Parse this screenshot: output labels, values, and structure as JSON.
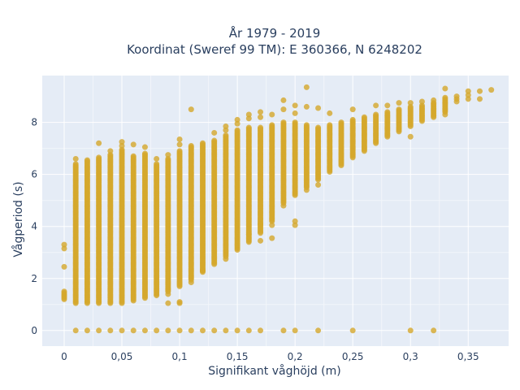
{
  "chart_data": {
    "type": "scatter",
    "title_line1": "År 1979 - 2019",
    "title_line2": "Koordinat (Sweref 99 TM): E 360366, N 6248202",
    "xlabel": "Signifikant våghöjd (m)",
    "ylabel": "Vågperiod (s)",
    "xlim": [
      -0.019,
      0.385
    ],
    "ylim": [
      -0.6,
      9.8
    ],
    "x_ticks": [
      0,
      0.05,
      0.1,
      0.15,
      0.2,
      0.25,
      0.3,
      0.35
    ],
    "x_tick_labels": [
      "0",
      "0,05",
      "0,1",
      "0,15",
      "0,2",
      "0,25",
      "0,3",
      "0,35"
    ],
    "y_ticks": [
      0,
      2,
      4,
      6,
      8
    ],
    "y_tick_labels": [
      "0",
      "2",
      "4",
      "6",
      "8"
    ],
    "grid": true,
    "plot_bgcolor": "#E5ECF6",
    "marker_color": "#D4A72C",
    "columns": [
      {
        "x": 0.01,
        "ymin": 1.05,
        "ymax": 6.4
      },
      {
        "x": 0.02,
        "ymin": 1.05,
        "ymax": 6.55
      },
      {
        "x": 0.03,
        "ymin": 1.05,
        "ymax": 6.65
      },
      {
        "x": 0.04,
        "ymin": 1.05,
        "ymax": 6.75
      },
      {
        "x": 0.05,
        "ymin": 1.05,
        "ymax": 6.95
      },
      {
        "x": 0.06,
        "ymin": 1.15,
        "ymax": 6.7
      },
      {
        "x": 0.07,
        "ymin": 1.25,
        "ymax": 6.8
      },
      {
        "x": 0.08,
        "ymin": 1.35,
        "ymax": 6.4
      },
      {
        "x": 0.09,
        "ymin": 1.5,
        "ymax": 6.6
      },
      {
        "x": 0.1,
        "ymin": 1.7,
        "ymax": 6.9
      },
      {
        "x": 0.11,
        "ymin": 1.95,
        "ymax": 7.1
      },
      {
        "x": 0.12,
        "ymin": 2.25,
        "ymax": 7.2
      },
      {
        "x": 0.13,
        "ymin": 2.55,
        "ymax": 7.3
      },
      {
        "x": 0.14,
        "ymin": 2.85,
        "ymax": 7.5
      },
      {
        "x": 0.15,
        "ymin": 3.15,
        "ymax": 7.7
      },
      {
        "x": 0.16,
        "ymin": 3.45,
        "ymax": 7.8
      },
      {
        "x": 0.17,
        "ymin": 3.75,
        "ymax": 7.8
      },
      {
        "x": 0.18,
        "ymin": 4.2,
        "ymax": 7.9
      },
      {
        "x": 0.19,
        "ymin": 4.9,
        "ymax": 8.0
      },
      {
        "x": 0.2,
        "ymin": 5.2,
        "ymax": 8.0
      },
      {
        "x": 0.21,
        "ymin": 5.5,
        "ymax": 7.9
      },
      {
        "x": 0.22,
        "ymin": 5.8,
        "ymax": 7.8
      },
      {
        "x": 0.23,
        "ymin": 6.1,
        "ymax": 7.9
      },
      {
        "x": 0.24,
        "ymin": 6.35,
        "ymax": 8.0
      },
      {
        "x": 0.25,
        "ymin": 6.65,
        "ymax": 8.1
      },
      {
        "x": 0.26,
        "ymin": 6.9,
        "ymax": 8.2
      },
      {
        "x": 0.27,
        "ymin": 7.2,
        "ymax": 8.3
      },
      {
        "x": 0.28,
        "ymin": 7.45,
        "ymax": 8.4
      },
      {
        "x": 0.29,
        "ymin": 7.65,
        "ymax": 8.5
      },
      {
        "x": 0.3,
        "ymin": 7.85,
        "ymax": 8.6
      },
      {
        "x": 0.31,
        "ymin": 8.05,
        "ymax": 8.65
      },
      {
        "x": 0.32,
        "ymin": 8.2,
        "ymax": 8.75
      },
      {
        "x": 0.33,
        "ymin": 8.4,
        "ymax": 8.95
      }
    ],
    "points": [
      [
        0,
        1.2
      ],
      [
        0,
        1.25
      ],
      [
        0,
        1.3
      ],
      [
        0,
        1.35
      ],
      [
        0,
        1.4
      ],
      [
        0,
        1.45
      ],
      [
        0,
        1.5
      ],
      [
        0,
        2.45
      ],
      [
        0,
        3.15
      ],
      [
        0,
        3.3
      ],
      [
        0.01,
        6.6
      ],
      [
        0.03,
        7.2
      ],
      [
        0.04,
        6.9
      ],
      [
        0.05,
        7.1
      ],
      [
        0.05,
        7.25
      ],
      [
        0.06,
        7.15
      ],
      [
        0.07,
        7.05
      ],
      [
        0.08,
        6.6
      ],
      [
        0.09,
        6.75
      ],
      [
        0.1,
        7.15
      ],
      [
        0.1,
        7.35
      ],
      [
        0.11,
        8.5
      ],
      [
        0.13,
        7.6
      ],
      [
        0.14,
        7.7
      ],
      [
        0.14,
        7.85
      ],
      [
        0.15,
        7.95
      ],
      [
        0.15,
        8.1
      ],
      [
        0.16,
        8.15
      ],
      [
        0.16,
        8.3
      ],
      [
        0.17,
        8.2
      ],
      [
        0.17,
        8.4
      ],
      [
        0.18,
        8.3
      ],
      [
        0.19,
        8.5
      ],
      [
        0.19,
        8.85
      ],
      [
        0.2,
        8.35
      ],
      [
        0.2,
        8.65
      ],
      [
        0.21,
        9.35
      ],
      [
        0.21,
        8.6
      ],
      [
        0.22,
        8.55
      ],
      [
        0.23,
        8.35
      ],
      [
        0.25,
        8.5
      ],
      [
        0.27,
        8.65
      ],
      [
        0.28,
        8.65
      ],
      [
        0.29,
        8.75
      ],
      [
        0.3,
        8.75
      ],
      [
        0.3,
        7.45
      ],
      [
        0.31,
        8.8
      ],
      [
        0.32,
        8.85
      ],
      [
        0.33,
        9.3
      ],
      [
        0.33,
        8.3
      ],
      [
        0.34,
        8.8
      ],
      [
        0.34,
        8.9
      ],
      [
        0.34,
        9.0
      ],
      [
        0.35,
        8.9
      ],
      [
        0.35,
        9.05
      ],
      [
        0.35,
        9.2
      ],
      [
        0.36,
        8.9
      ],
      [
        0.36,
        9.2
      ],
      [
        0.37,
        9.25
      ],
      [
        0.09,
        1.05
      ],
      [
        0.1,
        1.05
      ],
      [
        0.1,
        1.1
      ],
      [
        0.09,
        1.4
      ],
      [
        0.11,
        1.85
      ],
      [
        0.12,
        2.3
      ],
      [
        0.14,
        2.75
      ],
      [
        0.15,
        3.1
      ],
      [
        0.16,
        3.4
      ],
      [
        0.16,
        3.7
      ],
      [
        0.17,
        3.45
      ],
      [
        0.17,
        4.1
      ],
      [
        0.18,
        4.05
      ],
      [
        0.18,
        3.55
      ],
      [
        0.19,
        4.8
      ],
      [
        0.2,
        4.05
      ],
      [
        0.2,
        4.2
      ],
      [
        0.21,
        5.4
      ],
      [
        0.22,
        5.6
      ],
      [
        0.01,
        0
      ],
      [
        0.02,
        0
      ],
      [
        0.03,
        0
      ],
      [
        0.04,
        0
      ],
      [
        0.05,
        0
      ],
      [
        0.06,
        0
      ],
      [
        0.07,
        0
      ],
      [
        0.08,
        0
      ],
      [
        0.09,
        0
      ],
      [
        0.1,
        0
      ],
      [
        0.11,
        0
      ],
      [
        0.12,
        0
      ],
      [
        0.13,
        0
      ],
      [
        0.14,
        0
      ],
      [
        0.15,
        0
      ],
      [
        0.16,
        0
      ],
      [
        0.17,
        0
      ],
      [
        0.19,
        0
      ],
      [
        0.2,
        0
      ],
      [
        0.22,
        0
      ],
      [
        0.25,
        0
      ],
      [
        0.3,
        0
      ],
      [
        0.32,
        0
      ]
    ]
  }
}
